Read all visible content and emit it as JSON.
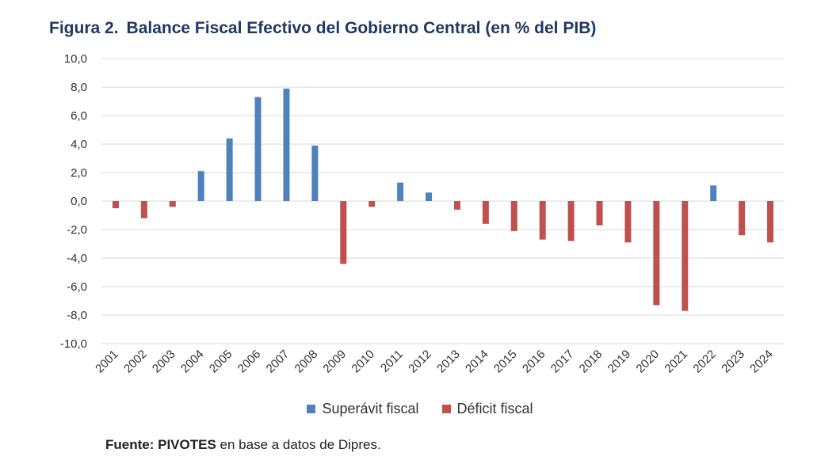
{
  "title_prefix": "Figura 2.",
  "title_main": "Balance Fiscal Efectivo del Gobierno Central (en % del PIB)",
  "source": {
    "label": "Fuente:",
    "org": "PIVOTES",
    "text": " en base a datos de Dipres."
  },
  "colors": {
    "surplus": "#4f81bd",
    "deficit": "#c0504d",
    "grid": "#d9d9d9"
  },
  "chart_data": {
    "type": "bar",
    "title": "Balance Fiscal Efectivo del Gobierno Central (en % del PIB)",
    "xlabel": "",
    "ylabel": "",
    "ylim": [
      -10,
      10
    ],
    "yticks": [
      "10,0",
      "8,0",
      "6,0",
      "4,0",
      "2,0",
      "0,0",
      "-2,0",
      "-4,0",
      "-6,0",
      "-8,0",
      "-10,0"
    ],
    "grid": true,
    "legend_position": "bottom",
    "categories": [
      "2001",
      "2002",
      "2003",
      "2004",
      "2005",
      "2006",
      "2007",
      "2008",
      "2009",
      "2010",
      "2011",
      "2012",
      "2013",
      "2014",
      "2015",
      "2016",
      "2017",
      "2018",
      "2019",
      "2020",
      "2021",
      "2022",
      "2023",
      "2024"
    ],
    "values": [
      -0.5,
      -1.2,
      -0.4,
      2.1,
      4.4,
      7.3,
      7.9,
      3.9,
      -4.4,
      -0.4,
      1.3,
      0.6,
      -0.6,
      -1.6,
      -2.1,
      -2.7,
      -2.8,
      -1.7,
      -2.9,
      -7.3,
      -7.7,
      1.1,
      -2.4,
      -2.9
    ],
    "series": [
      {
        "name": "Superávit fiscal",
        "color": "#4f81bd"
      },
      {
        "name": "Déficit fiscal",
        "color": "#c0504d"
      }
    ]
  }
}
